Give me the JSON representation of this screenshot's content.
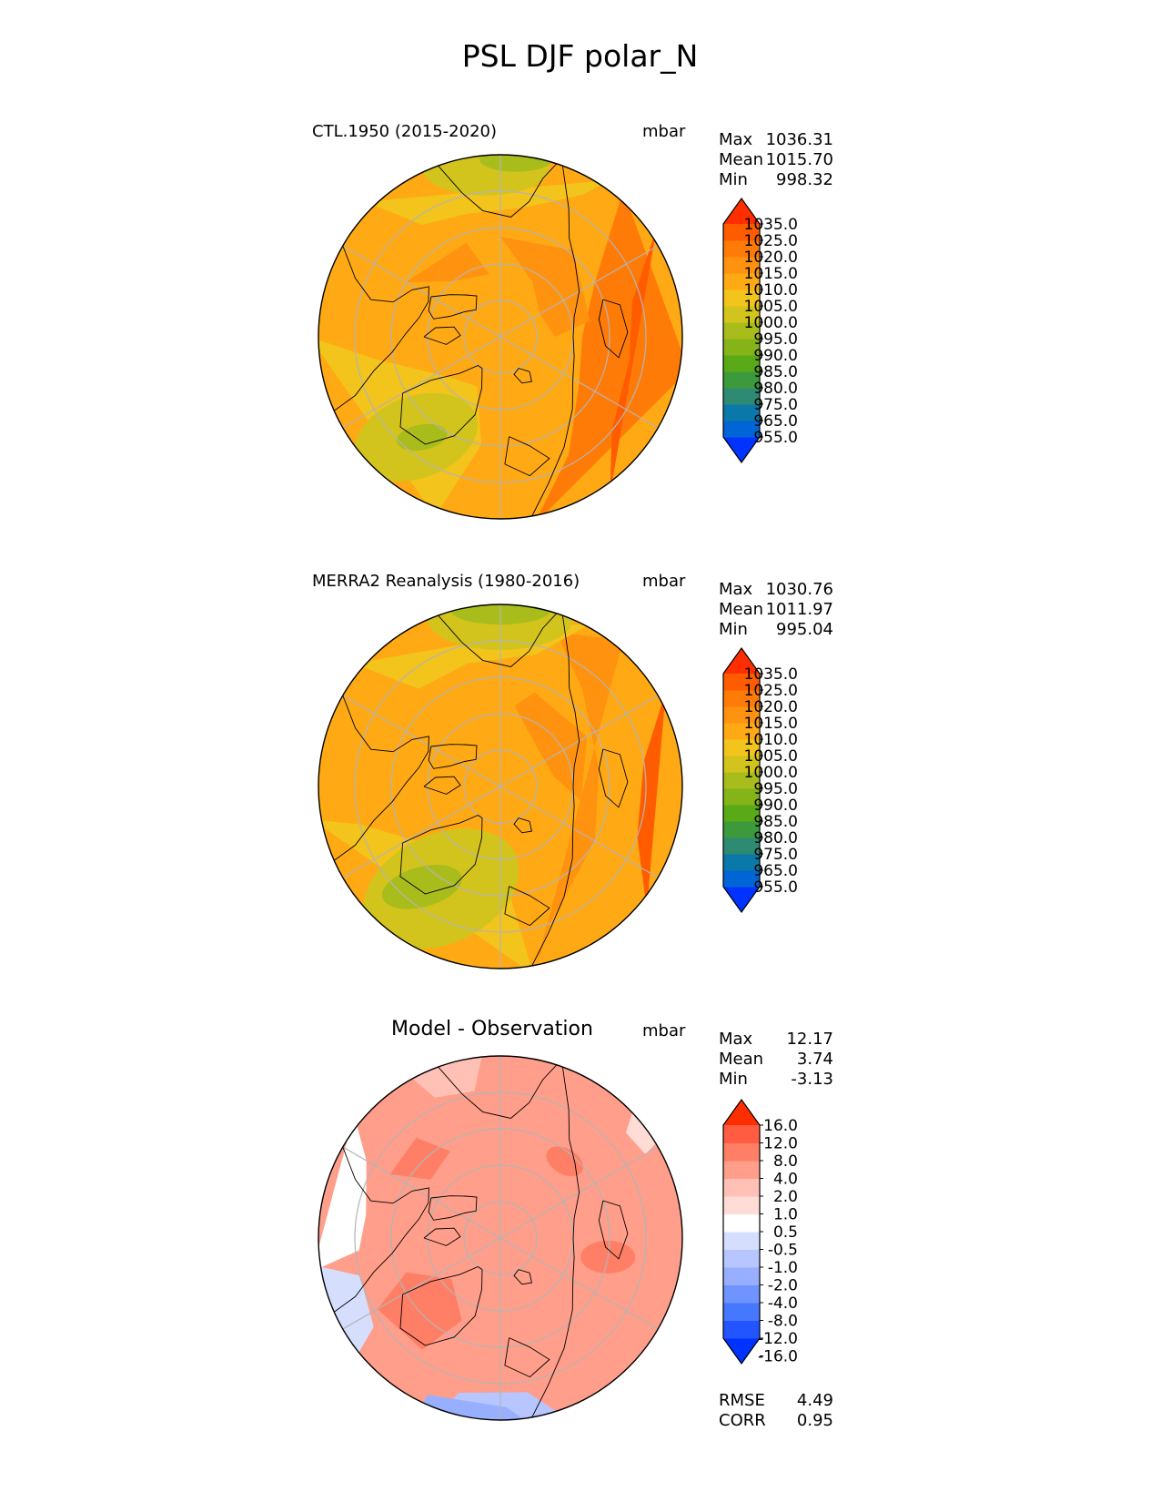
{
  "figure_title": "PSL DJF polar_N",
  "colors": {
    "abs_levels": [
      "#0033ff",
      "#0066d6",
      "#0a78a8",
      "#2e8a72",
      "#3c9a3c",
      "#5aaa18",
      "#84b418",
      "#a8bc1c",
      "#d2c41c",
      "#f2c41c",
      "#ffa914",
      "#ff9310",
      "#ff7b08",
      "#ff5c00",
      "#ff2e00"
    ],
    "diff_levels": [
      "#0033ff",
      "#2255ff",
      "#4577ff",
      "#6f93ff",
      "#98afff",
      "#b7c6ff",
      "#d6defd",
      "#ffffff",
      "#ffdcd6",
      "#ffc0b5",
      "#ff9e8a",
      "#ff7f66",
      "#ff5c42",
      "#ff2e00"
    ],
    "grid": "#b4b4b4",
    "coast": "#000000"
  },
  "panels": [
    {
      "title": "CTL.1950 (2015-2020)",
      "units": "mbar",
      "stats": {
        "max_label": "Max",
        "max": "1036.31",
        "mean_label": "Mean",
        "mean": "1015.70",
        "min_label": "Min",
        "min": "998.32"
      }
    },
    {
      "title": "MERRA2 Reanalysis (1980-2016)",
      "units": "mbar",
      "stats": {
        "max_label": "Max",
        "max": "1030.76",
        "mean_label": "Mean",
        "mean": "1011.97",
        "min_label": "Min",
        "min": "995.04"
      }
    },
    {
      "title": "Model - Observation",
      "units": "mbar",
      "stats": {
        "max_label": "Max",
        "max": "12.17",
        "mean_label": "Mean",
        "mean": "3.74",
        "min_label": "Min",
        "min": "-3.13"
      }
    }
  ],
  "footer": {
    "rmse_label": "RMSE",
    "rmse": "4.49",
    "corr_label": "CORR",
    "corr": "0.95"
  },
  "chart_data": [
    {
      "type": "heatmap",
      "projection": "north polar stereographic",
      "title": "CTL.1950 (2015-2020)",
      "variable": "PSL",
      "season": "DJF",
      "units": "mbar",
      "colorbar_ticks": [
        "1035.0",
        "1025.0",
        "1020.0",
        "1015.0",
        "1010.0",
        "1005.0",
        "1000.0",
        "995.0",
        "990.0",
        "985.0",
        "980.0",
        "975.0",
        "965.0",
        "955.0"
      ],
      "max": 1036.31,
      "mean": 1015.7,
      "min": 998.32
    },
    {
      "type": "heatmap",
      "projection": "north polar stereographic",
      "title": "MERRA2 Reanalysis (1980-2016)",
      "variable": "PSL",
      "season": "DJF",
      "units": "mbar",
      "colorbar_ticks": [
        "1035.0",
        "1025.0",
        "1020.0",
        "1015.0",
        "1010.0",
        "1005.0",
        "1000.0",
        "995.0",
        "990.0",
        "985.0",
        "980.0",
        "975.0",
        "965.0",
        "955.0"
      ],
      "max": 1030.76,
      "mean": 1011.97,
      "min": 995.04
    },
    {
      "type": "heatmap",
      "projection": "north polar stereographic",
      "title": "Model - Observation",
      "variable": "PSL",
      "season": "DJF",
      "units": "mbar",
      "colorbar_ticks": [
        "16.0",
        "12.0",
        "8.0",
        "4.0",
        "2.0",
        "1.0",
        "0.5",
        "-0.5",
        "-1.0",
        "-2.0",
        "-4.0",
        "-8.0",
        "-12.0",
        "-16.0"
      ],
      "max": 12.17,
      "mean": 3.74,
      "min": -3.13,
      "rmse": 4.49,
      "corr": 0.95
    }
  ]
}
